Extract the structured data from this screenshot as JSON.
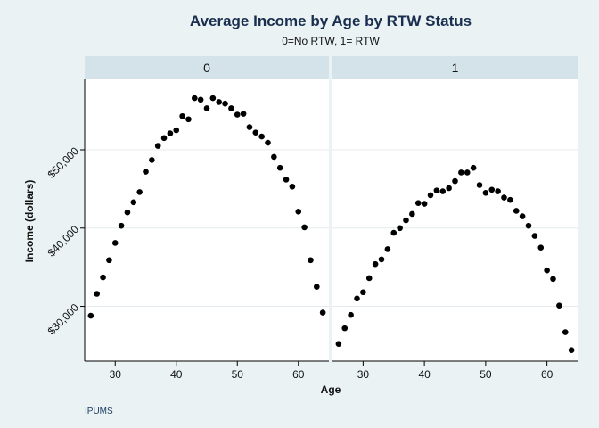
{
  "chart_data": {
    "type": "scatter",
    "title": "Average Income by Age by RTW Status",
    "subtitle": "0=No RTW, 1= RTW",
    "xlabel": "Age",
    "ylabel": "Income (dollars)",
    "note": "IPUMS",
    "xlim": [
      25,
      65
    ],
    "ylim": [
      23000,
      59000
    ],
    "x_ticks": [
      30,
      40,
      50,
      60
    ],
    "x_tick_labels": [
      "30",
      "40",
      "50",
      "60"
    ],
    "y_ticks": [
      30000,
      40000,
      50000
    ],
    "y_tick_labels": [
      "$30,000",
      "$40,000",
      "$50,000"
    ],
    "grid": true,
    "marker_color": "#000000",
    "strip_color": "#d4e2ea",
    "panels": [
      {
        "label": "0",
        "points": [
          [
            26,
            28800
          ],
          [
            27,
            31600
          ],
          [
            28,
            33700
          ],
          [
            29,
            35900
          ],
          [
            30,
            38100
          ],
          [
            31,
            40300
          ],
          [
            32,
            42000
          ],
          [
            33,
            43300
          ],
          [
            34,
            44600
          ],
          [
            35,
            47200
          ],
          [
            36,
            48700
          ],
          [
            37,
            50500
          ],
          [
            38,
            51500
          ],
          [
            39,
            52100
          ],
          [
            40,
            52500
          ],
          [
            41,
            54300
          ],
          [
            42,
            53900
          ],
          [
            43,
            56600
          ],
          [
            44,
            56400
          ],
          [
            45,
            55300
          ],
          [
            46,
            56600
          ],
          [
            47,
            56100
          ],
          [
            48,
            55900
          ],
          [
            49,
            55300
          ],
          [
            50,
            54500
          ],
          [
            51,
            54600
          ],
          [
            52,
            52900
          ],
          [
            53,
            52200
          ],
          [
            54,
            51700
          ],
          [
            55,
            50900
          ],
          [
            56,
            49100
          ],
          [
            57,
            47700
          ],
          [
            58,
            46200
          ],
          [
            59,
            45300
          ],
          [
            60,
            42100
          ],
          [
            61,
            40100
          ],
          [
            62,
            35900
          ],
          [
            63,
            32500
          ],
          [
            64,
            29200
          ]
        ]
      },
      {
        "label": "1",
        "points": [
          [
            26,
            25200
          ],
          [
            27,
            27200
          ],
          [
            28,
            28900
          ],
          [
            29,
            31000
          ],
          [
            30,
            31800
          ],
          [
            31,
            33600
          ],
          [
            32,
            35400
          ],
          [
            33,
            36000
          ],
          [
            34,
            37300
          ],
          [
            35,
            39400
          ],
          [
            36,
            40000
          ],
          [
            37,
            41000
          ],
          [
            38,
            41800
          ],
          [
            39,
            43200
          ],
          [
            40,
            43100
          ],
          [
            41,
            44200
          ],
          [
            42,
            44800
          ],
          [
            43,
            44700
          ],
          [
            44,
            45100
          ],
          [
            45,
            46000
          ],
          [
            46,
            47100
          ],
          [
            47,
            47100
          ],
          [
            48,
            47700
          ],
          [
            49,
            45500
          ],
          [
            50,
            44500
          ],
          [
            51,
            44900
          ],
          [
            52,
            44700
          ],
          [
            53,
            43900
          ],
          [
            54,
            43600
          ],
          [
            55,
            42200
          ],
          [
            56,
            41500
          ],
          [
            57,
            40300
          ],
          [
            58,
            39000
          ],
          [
            59,
            37500
          ],
          [
            60,
            34600
          ],
          [
            61,
            33500
          ],
          [
            62,
            30100
          ],
          [
            63,
            26700
          ],
          [
            64,
            24400
          ]
        ]
      }
    ]
  }
}
